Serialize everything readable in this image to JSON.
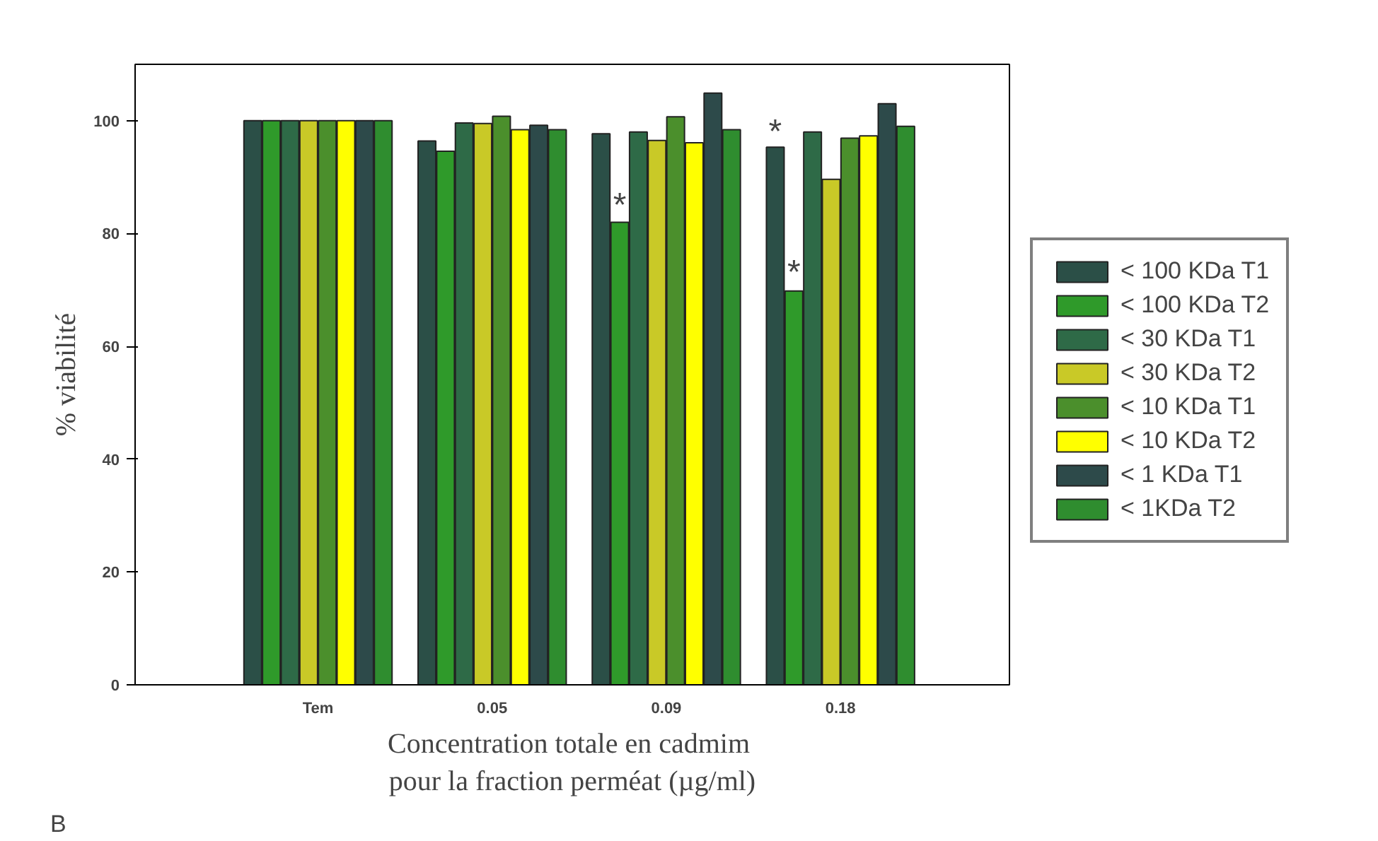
{
  "chart_data": {
    "type": "bar",
    "categories": [
      "Tem",
      "0.05",
      "0.09",
      "0.18"
    ],
    "xlabel": "Concentration  totale en cadmim\npour la fraction perméat (µg/ml)",
    "ylabel": "% viabilité",
    "ylim": [
      0,
      110
    ],
    "yticks": [
      0,
      20,
      40,
      60,
      80,
      100
    ],
    "grid": false,
    "legend": "right",
    "series": [
      {
        "name": "< 100 KDa T1",
        "color": "#2b4f47",
        "values": [
          100,
          96.4,
          97.7,
          95.3
        ]
      },
      {
        "name": "< 100 KDa T2",
        "color": "#2f9a2a",
        "values": [
          100,
          94.6,
          82,
          69.8
        ]
      },
      {
        "name": "< 30 KDa T1",
        "color": "#2e6a47",
        "values": [
          100,
          99.6,
          98,
          98
        ]
      },
      {
        "name": "< 30 KDa T2",
        "color": "#c9c927",
        "values": [
          100,
          99.5,
          96.5,
          89.6
        ]
      },
      {
        "name": "< 10 KDa T1",
        "color": "#4b8f2c",
        "values": [
          100,
          100.8,
          100.7,
          96.9
        ]
      },
      {
        "name": "< 10 KDa T2",
        "color": "#ffff00",
        "values": [
          100,
          98.4,
          96.1,
          97.3
        ]
      },
      {
        "name": "< 1 KDa T1",
        "color": "#2d4a4a",
        "values": [
          100,
          99.2,
          104.9,
          103
        ]
      },
      {
        "name": "< 1KDa T2",
        "color": "#2f8d2f",
        "values": [
          100,
          98.4,
          98.4,
          99
        ]
      }
    ],
    "annotations": [
      {
        "text": "*",
        "x": "0.09",
        "y": 84
      },
      {
        "text": "*",
        "x": "0.18",
        "y": 97
      },
      {
        "text": "*",
        "x": "0.18",
        "y": 72
      },
      "B"
    ]
  }
}
